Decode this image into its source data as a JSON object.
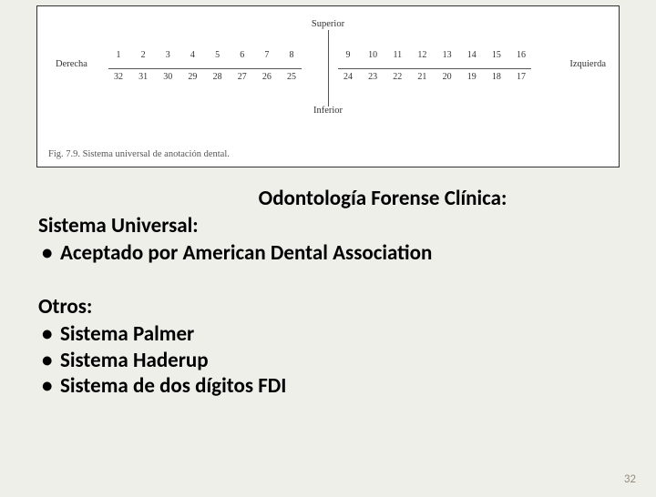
{
  "figure": {
    "label_superior": "Superior",
    "label_inferior": "Inferior",
    "label_derecha": "Derecha",
    "label_izquierda": "Izquierda",
    "top_left_nums": [
      "1",
      "2",
      "3",
      "4",
      "5",
      "6",
      "7",
      "8"
    ],
    "bot_left_nums": [
      "32",
      "31",
      "30",
      "29",
      "28",
      "27",
      "26",
      "25"
    ],
    "top_right_nums": [
      "9",
      "10",
      "11",
      "12",
      "13",
      "14",
      "15",
      "16"
    ],
    "bot_right_nums": [
      "24",
      "23",
      "22",
      "21",
      "20",
      "19",
      "18",
      "17"
    ],
    "caption": "Fig. 7.9.  Sistema universal de anotación dental."
  },
  "content": {
    "title": "Odontología Forense Clínica:",
    "subtitle": "Sistema Universal:",
    "bullets_a": [
      "Aceptado por American Dental Association"
    ],
    "others_heading": "Otros:",
    "bullets_b": [
      "Sistema Palmer",
      "Sistema Haderup",
      "Sistema de dos dígitos FDI"
    ]
  },
  "page_number": "32"
}
